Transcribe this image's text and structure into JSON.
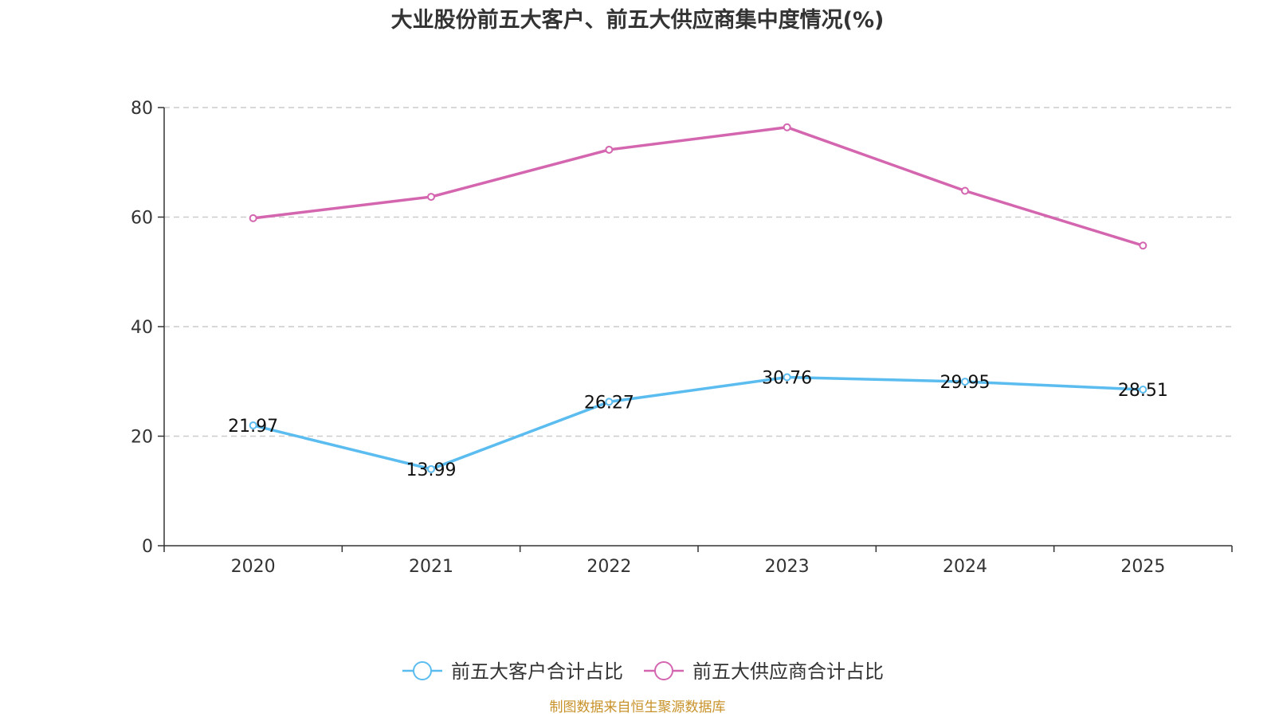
{
  "chart_data": {
    "type": "line",
    "title": "大业股份前五大客户、前五大供应商集中度情况(%)",
    "categories": [
      "2020",
      "2021",
      "2022",
      "2023",
      "2024",
      "2025"
    ],
    "series": [
      {
        "name": "前五大客户合计占比",
        "values": [
          21.97,
          13.99,
          26.27,
          30.76,
          29.95,
          28.51
        ],
        "value_labels": [
          "21.97",
          "13.99",
          "26.27",
          "30.76",
          "29.95",
          "28.51"
        ],
        "color": "#5bbcf0",
        "show_labels": true
      },
      {
        "name": "前五大供应商合计占比",
        "values": [
          59.8,
          63.7,
          72.3,
          76.4,
          64.8,
          54.8
        ],
        "color": "#d466b0",
        "show_labels": false
      }
    ],
    "ylim": [
      0,
      80
    ],
    "yticks": [
      "0",
      "20",
      "40",
      "60",
      "80"
    ],
    "grid": true,
    "legend_position": "bottom",
    "xlabel": "",
    "ylabel": ""
  },
  "source_note": "制图数据来自恒生聚源数据库"
}
